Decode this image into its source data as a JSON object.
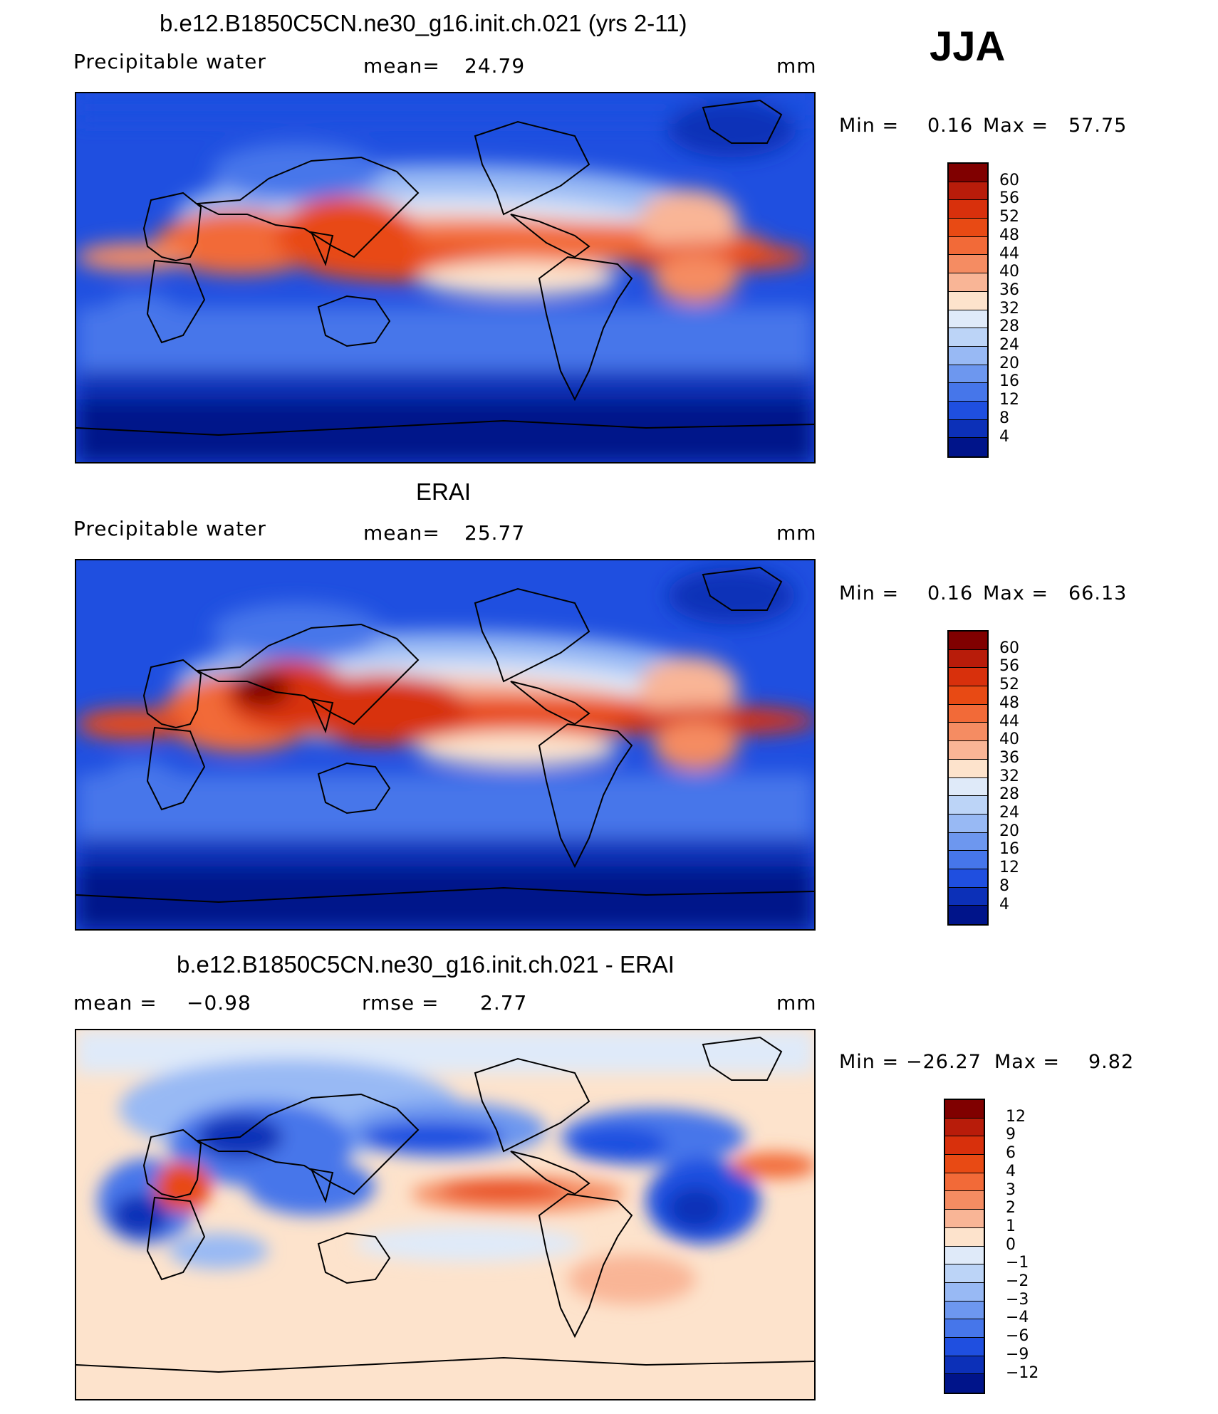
{
  "season": "JJA",
  "panels": [
    {
      "title": "b.e12.B1850C5CN.ne30_g16.init.ch.021 (yrs 2-11)",
      "variable": "Precipitable  water",
      "stat_label": "mean=",
      "stat_value": "24.79",
      "stat2_label": "",
      "stat2_value": "",
      "units": "mm",
      "min_label": "Min  =",
      "min_value": "0.16",
      "max_label": "Max  =",
      "max_value": "57.75",
      "levels": [
        "60",
        "56",
        "52",
        "48",
        "44",
        "40",
        "36",
        "32",
        "28",
        "24",
        "20",
        "16",
        "12",
        "8",
        "4"
      ],
      "colors": [
        "#800000",
        "#b81c0a",
        "#d8300c",
        "#e84a14",
        "#f26a38",
        "#f58c62",
        "#f9b596",
        "#fde3cc",
        "#dfeaf9",
        "#bcd4f7",
        "#98b9f4",
        "#6d97ef",
        "#4676ea",
        "#1f4fe0",
        "#0c30b8",
        "#00148a"
      ]
    },
    {
      "title": "ERAI",
      "variable": "Precipitable  water",
      "stat_label": "mean=",
      "stat_value": "25.77",
      "stat2_label": "",
      "stat2_value": "",
      "units": "mm",
      "min_label": "Min  =",
      "min_value": "0.16",
      "max_label": "Max  =",
      "max_value": "66.13",
      "levels": [
        "60",
        "56",
        "52",
        "48",
        "44",
        "40",
        "36",
        "32",
        "28",
        "24",
        "20",
        "16",
        "12",
        "8",
        "4"
      ],
      "colors": [
        "#800000",
        "#b81c0a",
        "#d8300c",
        "#e84a14",
        "#f26a38",
        "#f58c62",
        "#f9b596",
        "#fde3cc",
        "#dfeaf9",
        "#bcd4f7",
        "#98b9f4",
        "#6d97ef",
        "#4676ea",
        "#1f4fe0",
        "#0c30b8",
        "#00148a"
      ]
    },
    {
      "title": "b.e12.B1850C5CN.ne30_g16.init.ch.021 - ERAI",
      "variable": "",
      "stat_label": "mean  =",
      "stat_value": "−0.98",
      "stat2_label": "rmse  =",
      "stat2_value": "2.77",
      "units": "mm",
      "min_label": "Min  =",
      "min_value": "−26.27",
      "max_label": "Max  =",
      "max_value": "9.82",
      "levels": [
        "12",
        "9",
        "6",
        "4",
        "3",
        "2",
        "1",
        "0",
        "−1",
        "−2",
        "−3",
        "−4",
        "−6",
        "−9",
        "−12"
      ],
      "colors": [
        "#800000",
        "#b81c0a",
        "#d8300c",
        "#e84a14",
        "#f26a38",
        "#f58c62",
        "#f9b596",
        "#fde3cc",
        "#dfeaf9",
        "#bcd4f7",
        "#98b9f4",
        "#6d97ef",
        "#4676ea",
        "#1f4fe0",
        "#0c30b8",
        "#00148a"
      ]
    }
  ]
}
